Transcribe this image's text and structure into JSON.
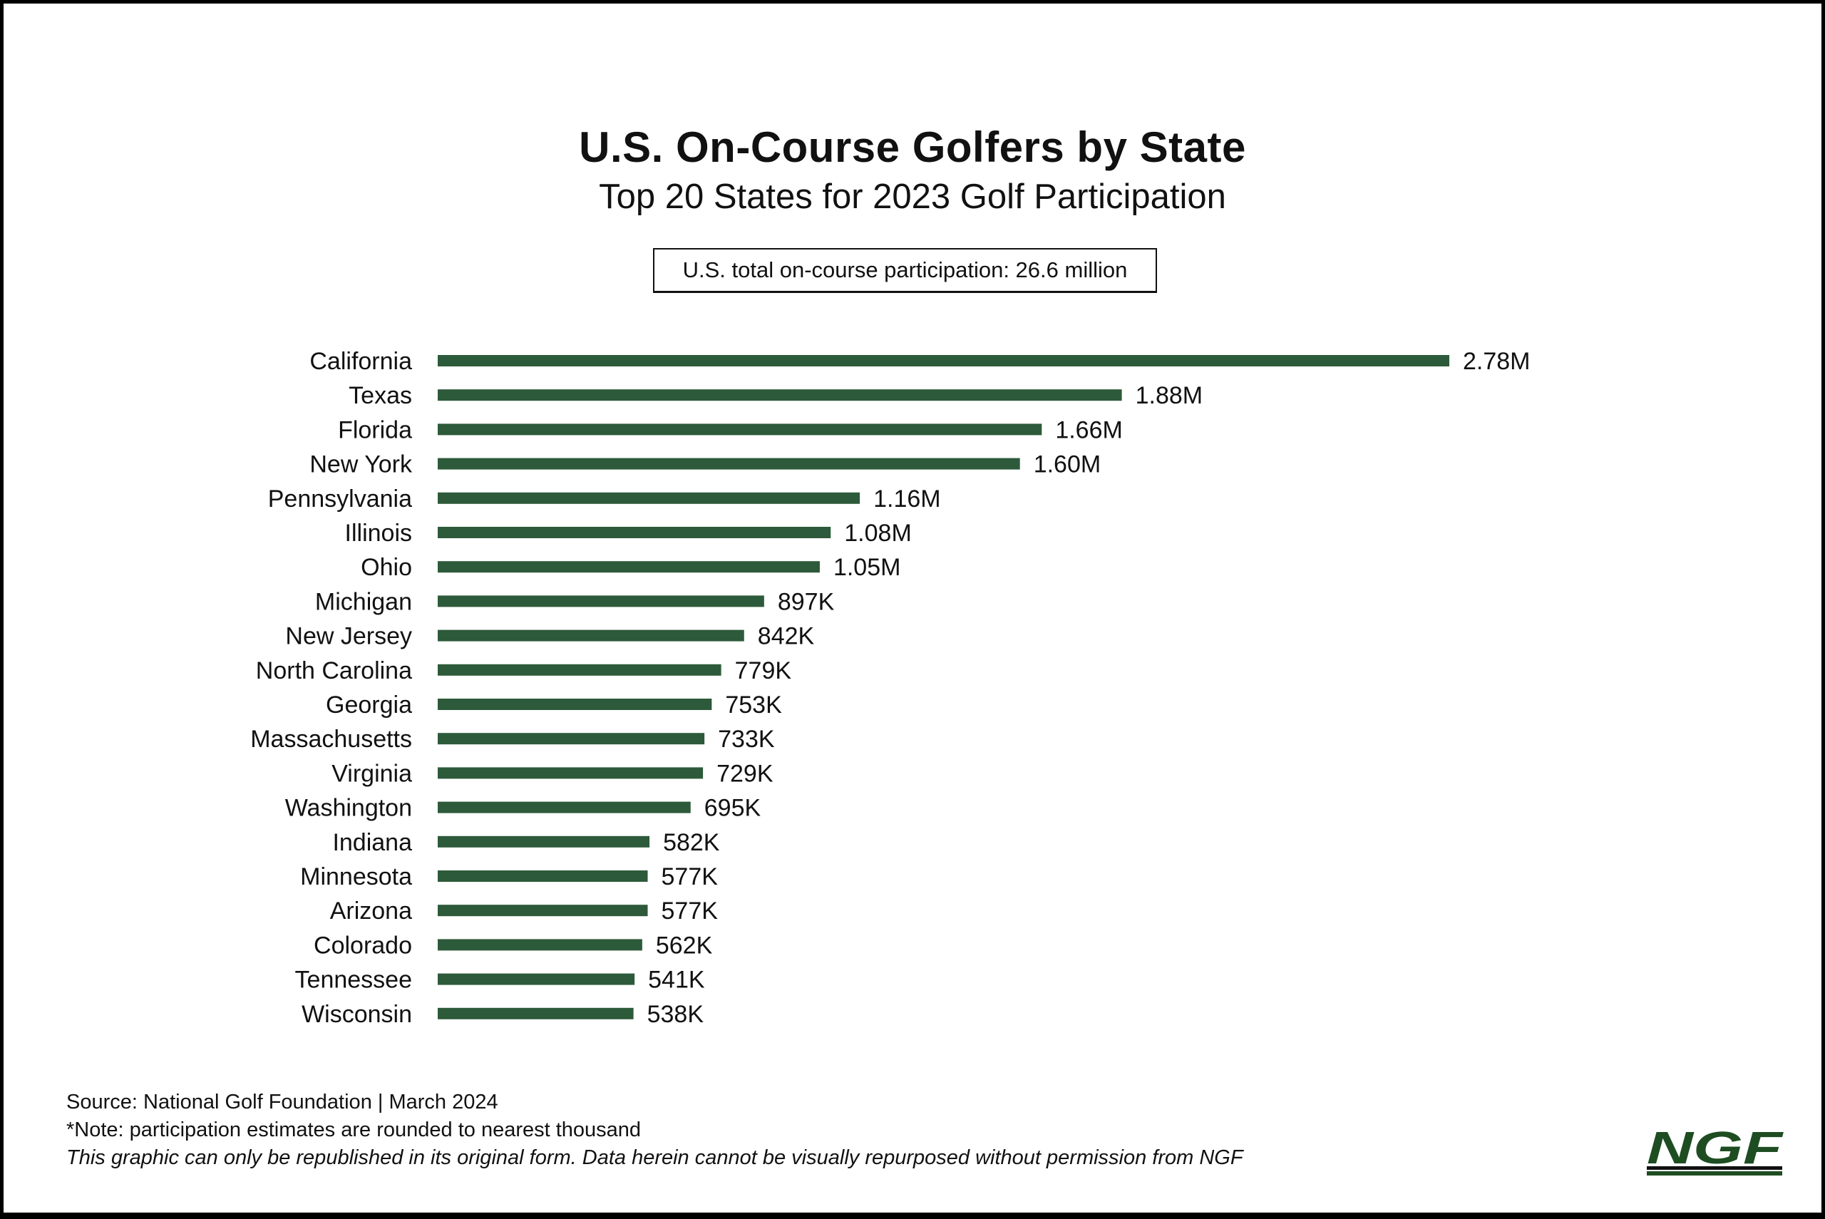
{
  "chart_data": {
    "type": "bar",
    "orientation": "horizontal",
    "title": "U.S. On-Course Golfers by State",
    "subtitle": "Top 20 States for 2023 Golf Participation",
    "annotation": "U.S. total on-course participation: 26.6 million",
    "categories": [
      "California",
      "Texas",
      "Florida",
      "New York",
      "Pennsylvania",
      "Illinois",
      "Ohio",
      "Michigan",
      "New Jersey",
      "North Carolina",
      "Georgia",
      "Massachusetts",
      "Virginia",
      "Washington",
      "Indiana",
      "Minnesota",
      "Arizona",
      "Colorado",
      "Tennessee",
      "Wisconsin"
    ],
    "values": [
      2780000,
      1880000,
      1660000,
      1600000,
      1160000,
      1080000,
      1050000,
      897000,
      842000,
      779000,
      753000,
      733000,
      729000,
      695000,
      582000,
      577000,
      577000,
      562000,
      541000,
      538000
    ],
    "data_labels": [
      "2.78M",
      "1.88M",
      "1.66M",
      "1.60M",
      "1.16M",
      "1.08M",
      "1.05M",
      "897K",
      "842K",
      "779K",
      "753K",
      "733K",
      "729K",
      "695K",
      "582K",
      "577K",
      "577K",
      "562K",
      "541K",
      "538K"
    ],
    "bar_color": "#2d5a3a",
    "grid": false,
    "axes_visible": false
  },
  "footer": {
    "source_label": "Source",
    "source_name": ": National Golf Foundation",
    "date": " | March 2024",
    "note": "*Note: participation estimates are rounded to nearest thousand",
    "disclaimer": "This graphic can only be republished in its original form. Data herein cannot be visually repurposed without permission from NGF"
  },
  "logo": {
    "text": "NGF",
    "color": "#1e4d22"
  }
}
